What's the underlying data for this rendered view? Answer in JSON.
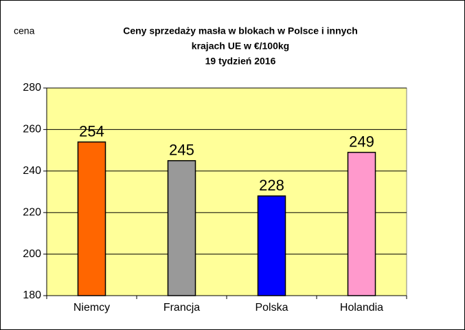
{
  "chart_data": {
    "type": "bar",
    "title": [
      "Ceny sprzedaży masła w blokach w Polsce i  innych",
      "krajach UE w €/100kg",
      "19 tydzień 2016"
    ],
    "y_label": "cena",
    "categories": [
      "Niemcy",
      "Francja",
      "Polska",
      "Holandia"
    ],
    "values": [
      254,
      245,
      228,
      249
    ],
    "colors": [
      "#ff6600",
      "#999999",
      "#0000ff",
      "#ff99cc"
    ],
    "background": "#ffff99",
    "ylim": [
      180,
      280
    ],
    "yticks": [
      180,
      200,
      220,
      240,
      260,
      280
    ],
    "grid": true
  }
}
